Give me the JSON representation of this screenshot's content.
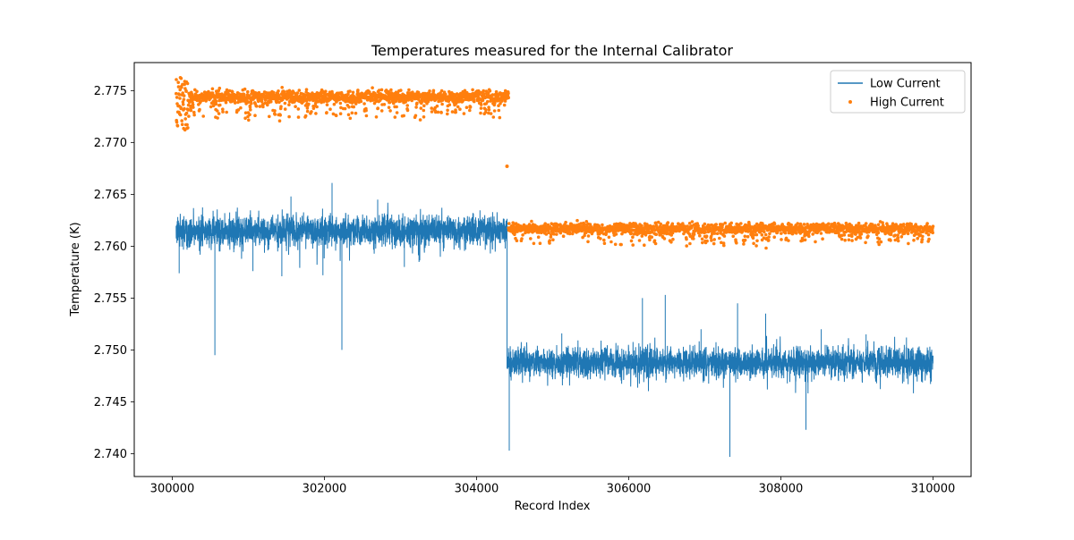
{
  "figure": {
    "background": "#ffffff"
  },
  "chart_data": {
    "type": "line+scatter",
    "title": "Temperatures measured for the Internal Calibrator",
    "xlabel": "Record Index",
    "ylabel": "Temperature (K)",
    "xlim": [
      299500,
      310500
    ],
    "ylim": [
      2.7378,
      2.7777
    ],
    "xtick_labels": [
      "300000",
      "302000",
      "304000",
      "306000",
      "308000",
      "310000"
    ],
    "ytick_labels": [
      "2.740",
      "2.745",
      "2.750",
      "2.755",
      "2.760",
      "2.765",
      "2.770",
      "2.775"
    ],
    "grid": false,
    "legend": {
      "position": "upper right",
      "entries": [
        {
          "label": "Low Current",
          "color": "#1f77b4",
          "marker": "line"
        },
        {
          "label": "High Current",
          "color": "#ff7f0e",
          "marker": "dot"
        }
      ]
    },
    "series": [
      {
        "name": "Low Current",
        "type": "line",
        "color": "#1f77b4",
        "segments": [
          {
            "x_start": 300050,
            "x_end": 304400,
            "baseline": 2.7615,
            "noise_sigma": 0.0007,
            "points": 2600,
            "spikes": [
              {
                "x": 300090,
                "y": 2.7574
              },
              {
                "x": 300560,
                "y": 2.7495
              },
              {
                "x": 301060,
                "y": 2.7576
              },
              {
                "x": 301440,
                "y": 2.7571
              },
              {
                "x": 301560,
                "y": 2.7648
              },
              {
                "x": 301980,
                "y": 2.7572
              },
              {
                "x": 302100,
                "y": 2.7661
              },
              {
                "x": 302230,
                "y": 2.75
              },
              {
                "x": 302700,
                "y": 2.7645
              },
              {
                "x": 303050,
                "y": 2.758
              }
            ]
          },
          {
            "x_start": 304400,
            "x_end": 310000,
            "baseline": 2.7488,
            "noise_sigma": 0.0007,
            "points": 3200,
            "spikes": [
              {
                "x": 304430,
                "y": 2.7403
              },
              {
                "x": 305120,
                "y": 2.7516
              },
              {
                "x": 306180,
                "y": 2.755
              },
              {
                "x": 306480,
                "y": 2.7553
              },
              {
                "x": 306950,
                "y": 2.752
              },
              {
                "x": 307330,
                "y": 2.7397
              },
              {
                "x": 307430,
                "y": 2.7545
              },
              {
                "x": 307800,
                "y": 2.7535
              },
              {
                "x": 308330,
                "y": 2.7423
              },
              {
                "x": 308530,
                "y": 2.752
              },
              {
                "x": 309120,
                "y": 2.7515
              },
              {
                "x": 309650,
                "y": 2.7512
              }
            ]
          }
        ]
      },
      {
        "name": "High Current",
        "type": "scatter",
        "color": "#ff7f0e",
        "marker_radius": 1.8,
        "segments": [
          {
            "x_start": 300050,
            "x_end": 304420,
            "baseline": 2.7744,
            "noise_sigma": 0.00028,
            "dip_depth": 0.0019,
            "points": 1500,
            "start_scatter": {
              "x_end": 300220,
              "y_min": 2.7712,
              "y_max": 2.7763
            }
          },
          {
            "x_start": 304420,
            "x_end": 310000,
            "baseline": 2.7617,
            "noise_sigma": 0.00024,
            "dip_depth": 0.0013,
            "points": 1700
          }
        ],
        "outliers": [
          {
            "x": 304400,
            "y": 2.7677
          }
        ]
      }
    ]
  }
}
